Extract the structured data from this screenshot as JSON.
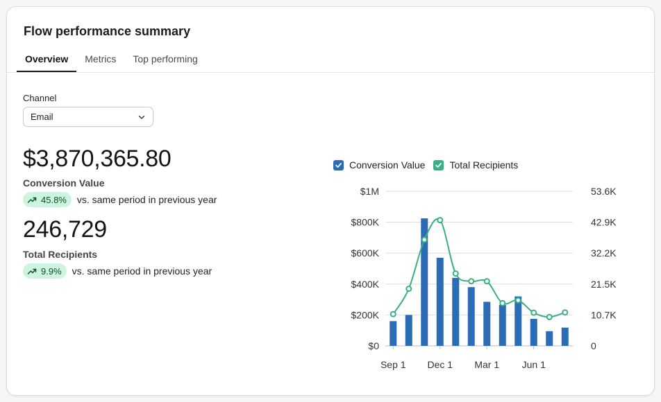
{
  "header": {
    "title": "Flow performance summary"
  },
  "tabs": [
    {
      "label": "Overview",
      "active": true
    },
    {
      "label": "Metrics",
      "active": false
    },
    {
      "label": "Top performing",
      "active": false
    }
  ],
  "channel": {
    "label": "Channel",
    "value": "Email"
  },
  "metrics": [
    {
      "value": "$3,870,365.80",
      "label": "Conversion Value",
      "change": "45.8%",
      "comparison": "vs. same period in previous year"
    },
    {
      "value": "246,729",
      "label": "Total Recipients",
      "change": "9.9%",
      "comparison": "vs. same period in previous year"
    }
  ],
  "colors": {
    "bar": "#2b6cb5",
    "line": "#3aaf85",
    "badge_bg": "#cdf4df"
  },
  "chart_data": {
    "type": "bar",
    "legend": [
      "Conversion Value",
      "Total Recipients"
    ],
    "x_ticks": [
      "Sep 1",
      "Dec 1",
      "Mar 1",
      "Jun 1"
    ],
    "y_left_ticks": [
      "$0",
      "$200K",
      "$400K",
      "$600K",
      "$800K",
      "$1M"
    ],
    "y_right_ticks": [
      "0",
      "10.7K",
      "21.5K",
      "32.2K",
      "42.9K",
      "53.6K"
    ],
    "ylim_left": [
      0,
      1000000
    ],
    "ylim_right": [
      0,
      53600
    ],
    "grid": true,
    "series": [
      {
        "name": "Conversion Value",
        "type": "bar",
        "axis": "left",
        "values": [
          160000,
          200000,
          825000,
          570000,
          440000,
          380000,
          285000,
          265000,
          320000,
          175000,
          95000,
          118000
        ]
      },
      {
        "name": "Total Recipients",
        "type": "line",
        "axis": "right",
        "values": [
          11000,
          19800,
          36800,
          43600,
          25100,
          22400,
          22400,
          14800,
          15800,
          11500,
          10000,
          11600
        ]
      }
    ]
  }
}
